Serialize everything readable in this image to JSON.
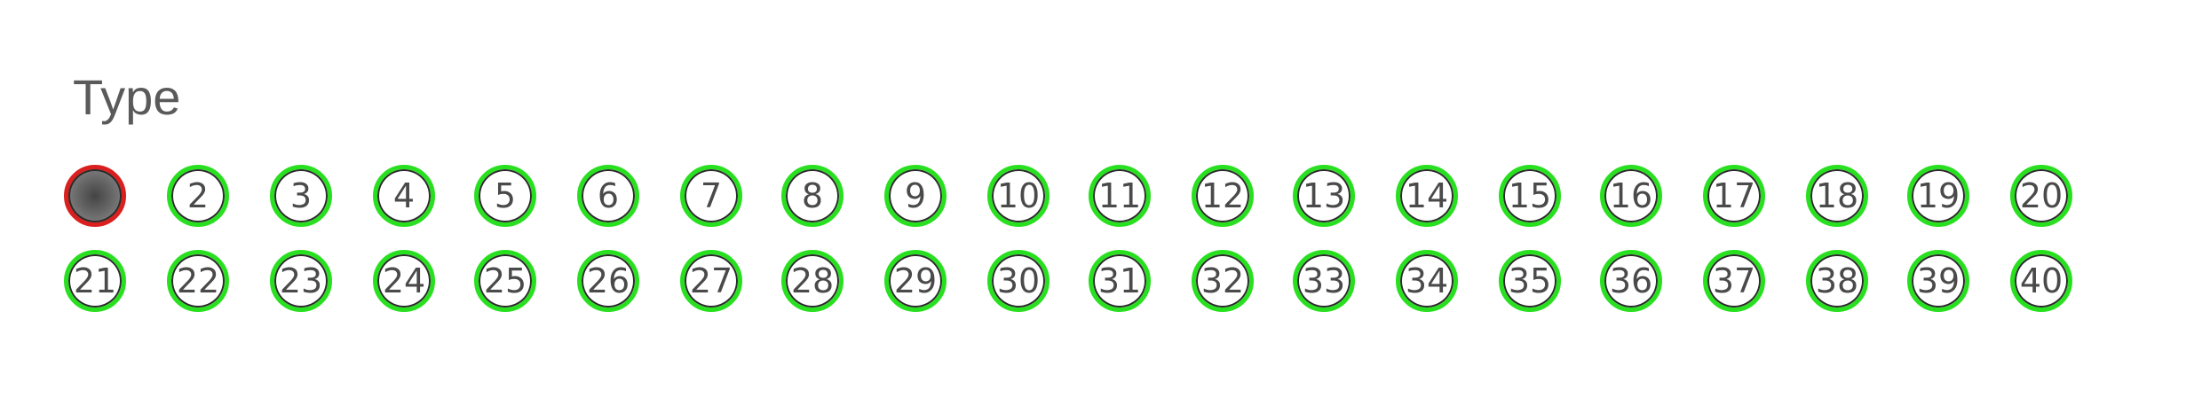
{
  "section": {
    "title": "Type"
  },
  "bubbles": {
    "row1": [
      "",
      "2",
      "3",
      "4",
      "5",
      "6",
      "7",
      "8",
      "9",
      "10",
      "11",
      "12",
      "13",
      "14",
      "15",
      "16",
      "17",
      "18",
      "19",
      "20"
    ],
    "row2": [
      "21",
      "22",
      "23",
      "24",
      "25",
      "26",
      "27",
      "28",
      "29",
      "30",
      "31",
      "32",
      "33",
      "34",
      "35",
      "36",
      "37",
      "38",
      "39",
      "40"
    ],
    "selected_index": 1
  },
  "colors": {
    "ring_default": "#28e01f",
    "ring_selected": "#d9201f",
    "text": "#4a4a4a"
  }
}
